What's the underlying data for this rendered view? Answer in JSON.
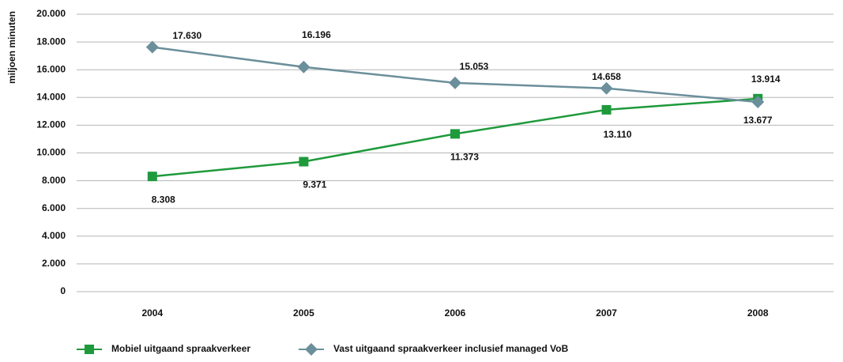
{
  "chart_data": {
    "type": "line",
    "y_label": "miljoen minuten",
    "categories": [
      "2004",
      "2005",
      "2006",
      "2007",
      "2008"
    ],
    "series": [
      {
        "name": "Mobiel uitgaand spraakverkeer",
        "color": "#1e9a3c",
        "marker": "square",
        "values": [
          8308,
          9371,
          11373,
          13110,
          13914
        ],
        "value_labels": [
          "8.308",
          "9.371",
          "11.373",
          "13.110",
          "13.914"
        ]
      },
      {
        "name": "Vast uitgaand spraakverkeer inclusief managed VoB",
        "color": "#6b8f9b",
        "marker": "diamond",
        "values": [
          17630,
          16196,
          15053,
          14658,
          13677
        ],
        "value_labels": [
          "17.630",
          "16.196",
          "15.053",
          "14.658",
          "13.677"
        ]
      }
    ],
    "ylim": [
      0,
      20000
    ],
    "yticks": [
      0,
      {
        "value": 2000,
        "label": "2.000"
      },
      {
        "value": 4000,
        "label": "4.000"
      },
      {
        "value": 6000,
        "label": "6.000"
      },
      {
        "value": 8000,
        "label": "8.000"
      },
      {
        "value": 10000,
        "label": "10.000"
      },
      {
        "value": 12000,
        "label": "12.000"
      },
      {
        "value": 14000,
        "label": "14.000"
      },
      {
        "value": 16000,
        "label": "16.000"
      },
      {
        "value": 18000,
        "label": "18.000"
      },
      {
        "value": 20000,
        "label": "20.000"
      }
    ],
    "grid": true,
    "legend": "bottom-left"
  }
}
